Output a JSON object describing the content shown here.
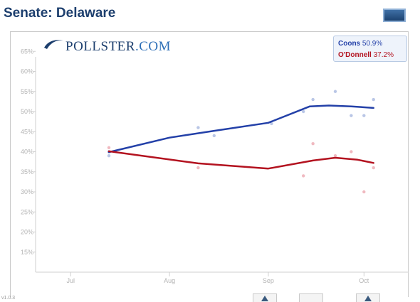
{
  "header": {
    "title": "Senate: Delaware"
  },
  "logo": {
    "text": "POLLSTER",
    "suffix": ".COM"
  },
  "footer": {
    "version": "v1.0.3"
  },
  "colors": {
    "coons": "#2340a8",
    "odonnell": "#b3121f",
    "title": "#1d3f6e"
  },
  "legend": [
    {
      "name": "Coons",
      "value": "50.9%"
    },
    {
      "name": "O'Donnell",
      "value": "37.2%"
    }
  ],
  "chart_data": {
    "type": "line",
    "title": "Senate: Delaware",
    "x_ticks": [
      "Jul",
      "Aug",
      "Sep",
      "Oct"
    ],
    "xlim": [
      "2010-06-20",
      "2010-10-15"
    ],
    "y_ticks": [
      "65%",
      "60%",
      "55%",
      "50%",
      "45%",
      "40%",
      "35%",
      "30%",
      "25%",
      "20%",
      "15%"
    ],
    "ylim": [
      10,
      70
    ],
    "grid": false,
    "legend_position": "top-right",
    "series": [
      {
        "name": "Coons",
        "color": "#2340a8",
        "trend": [
          {
            "x": "2010-07-13",
            "y": 39.9
          },
          {
            "x": "2010-08-01",
            "y": 43.5
          },
          {
            "x": "2010-08-15",
            "y": 45.2
          },
          {
            "x": "2010-09-01",
            "y": 47.2
          },
          {
            "x": "2010-09-14",
            "y": 51.3
          },
          {
            "x": "2010-09-20",
            "y": 51.5
          },
          {
            "x": "2010-09-27",
            "y": 51.3
          },
          {
            "x": "2010-10-04",
            "y": 50.9
          }
        ],
        "polls": [
          {
            "x": "2010-07-13",
            "y": 40
          },
          {
            "x": "2010-07-13",
            "y": 39
          },
          {
            "x": "2010-08-10",
            "y": 46
          },
          {
            "x": "2010-08-15",
            "y": 44
          },
          {
            "x": "2010-09-02",
            "y": 47
          },
          {
            "x": "2010-09-12",
            "y": 50
          },
          {
            "x": "2010-09-15",
            "y": 53
          },
          {
            "x": "2010-09-22",
            "y": 55
          },
          {
            "x": "2010-09-27",
            "y": 49
          },
          {
            "x": "2010-10-01",
            "y": 49
          },
          {
            "x": "2010-10-04",
            "y": 53
          }
        ]
      },
      {
        "name": "O'Donnell",
        "color": "#b3121f",
        "trend": [
          {
            "x": "2010-07-13",
            "y": 40.1
          },
          {
            "x": "2010-08-10",
            "y": 37.1
          },
          {
            "x": "2010-09-01",
            "y": 35.8
          },
          {
            "x": "2010-09-15",
            "y": 37.8
          },
          {
            "x": "2010-09-22",
            "y": 38.5
          },
          {
            "x": "2010-09-29",
            "y": 38.0
          },
          {
            "x": "2010-10-04",
            "y": 37.2
          }
        ],
        "polls": [
          {
            "x": "2010-07-13",
            "y": 41
          },
          {
            "x": "2010-08-10",
            "y": 36
          },
          {
            "x": "2010-09-12",
            "y": 34
          },
          {
            "x": "2010-09-15",
            "y": 42
          },
          {
            "x": "2010-09-22",
            "y": 39
          },
          {
            "x": "2010-09-27",
            "y": 40
          },
          {
            "x": "2010-10-01",
            "y": 30
          },
          {
            "x": "2010-10-04",
            "y": 36
          }
        ]
      }
    ]
  }
}
